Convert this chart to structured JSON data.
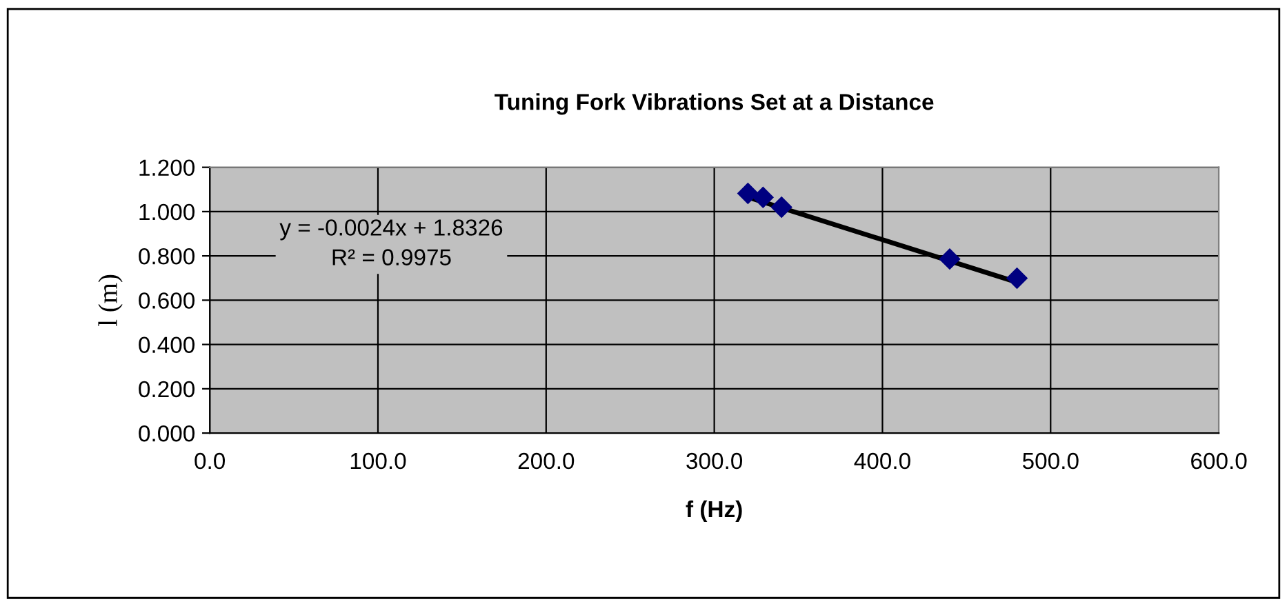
{
  "chart_data": {
    "type": "scatter",
    "title": "Tuning Fork Vibrations Set at a Distance",
    "xlabel": "f (Hz)",
    "ylabel": "l (m)",
    "annotations": [
      "y = -0.0024x + 1.8326\nR² = 0.9975"
    ],
    "series": [
      {
        "color": "#000080",
        "marker": "diamond",
        "x": [
          320,
          329,
          340,
          440,
          480
        ],
        "values": [
          1.082,
          1.064,
          1.02,
          0.786,
          0.699
        ]
      },
      {
        "type": "line",
        "color": "#000000",
        "marker": "none",
        "x": [
          320,
          480
        ],
        "values": [
          1.065,
          0.681
        ]
      }
    ],
    "xlim": [
      0,
      600
    ],
    "xticks": [
      {
        "value": 0,
        "label": "0.0"
      },
      {
        "value": 100,
        "label": "100.0"
      },
      {
        "value": 200,
        "label": "200.0"
      },
      {
        "value": 300,
        "label": "300.0"
      },
      {
        "value": 400,
        "label": "400.0"
      },
      {
        "value": 500,
        "label": "500.0"
      },
      {
        "value": 600,
        "label": "600.0"
      }
    ],
    "ylim": [
      0,
      1.2
    ],
    "yticks": [
      {
        "value": 0,
        "label": "0.000"
      },
      {
        "value": 0.2,
        "label": "0.200"
      },
      {
        "value": 0.4,
        "label": "0.400"
      },
      {
        "value": 0.6,
        "label": "0.600"
      },
      {
        "value": 0.8,
        "label": "0.800"
      },
      {
        "value": 1.0,
        "label": "1.000"
      },
      {
        "value": 1.2,
        "label": "1.200"
      }
    ],
    "grid": true,
    "legend": false
  }
}
